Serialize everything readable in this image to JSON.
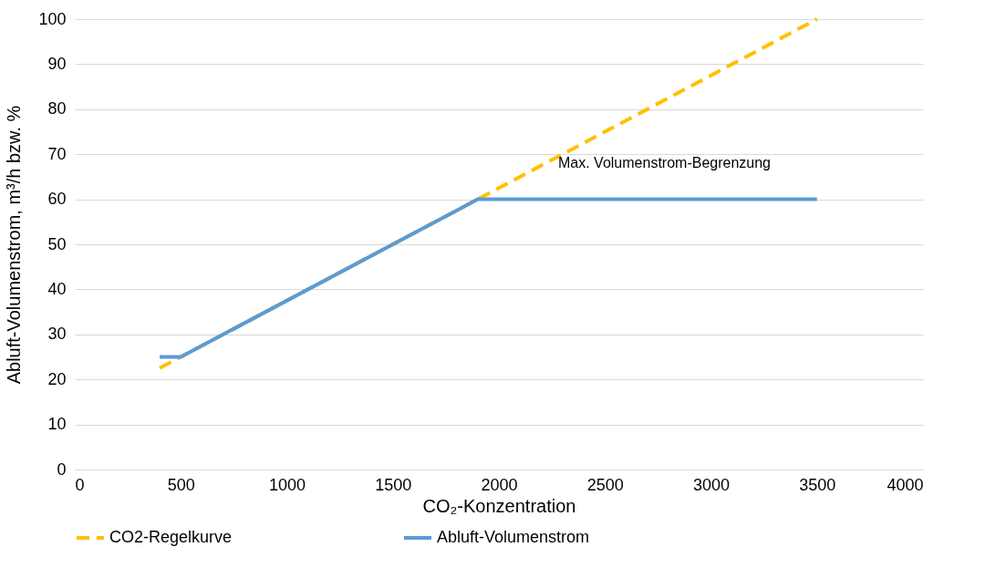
{
  "chart_data": {
    "type": "line",
    "xlabel": "CO₂-Konzentration",
    "ylabel": "Abluft-Volumenstrom, m³/h bzw. %",
    "series": [
      {
        "name": "CO2-Regelkurve",
        "color": "#ffc000",
        "line_style": "dashed",
        "x": [
          400,
          3500
        ],
        "values": [
          22.5,
          100
        ]
      },
      {
        "name": "Abluft-Volumenstrom",
        "color": "#5b9bd5",
        "line_style": "solid",
        "x": [
          400,
          500,
          1900,
          3500
        ],
        "values": [
          25,
          25,
          60,
          60
        ]
      }
    ],
    "annotations": [
      "Max. Volumenstrom-Begrenzung"
    ],
    "xlim": [
      0,
      4000
    ],
    "xticks": [
      0,
      500,
      1000,
      1500,
      2000,
      2500,
      3000,
      3500,
      4000
    ],
    "ylim": [
      0,
      100
    ],
    "yticks": [
      0,
      10,
      20,
      30,
      40,
      50,
      60,
      70,
      80,
      90,
      100
    ],
    "grid": "y",
    "legend": "bottom",
    "marker": "none"
  }
}
